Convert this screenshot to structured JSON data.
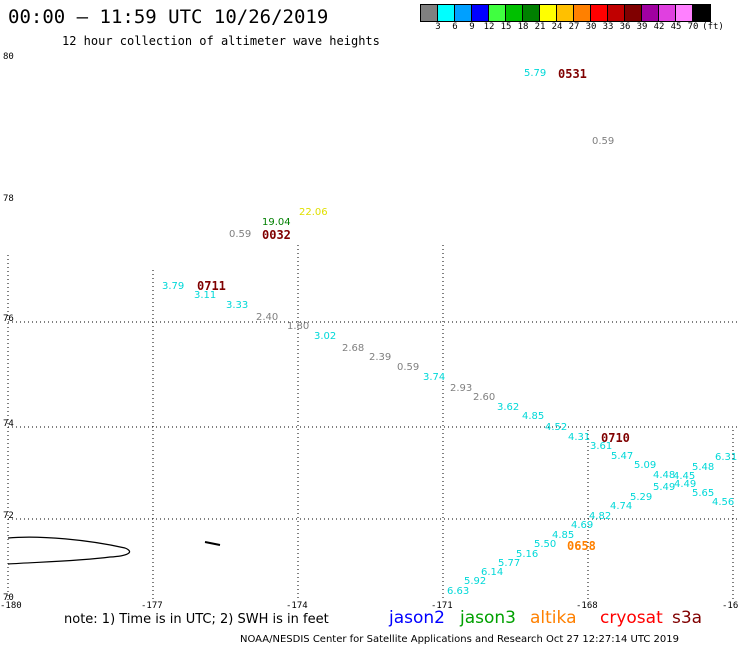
{
  "title": "00:00 – 11:59 UTC 10/26/2019",
  "subtitle": "12 hour collection of altimeter wave heights",
  "legend": {
    "unit": "(ft)",
    "items": [
      {
        "label": "3",
        "color": "#808080"
      },
      {
        "label": "6",
        "color": "#00ffff"
      },
      {
        "label": "9",
        "color": "#00a0ff"
      },
      {
        "label": "12",
        "color": "#0000ff"
      },
      {
        "label": "15",
        "color": "#40ff40"
      },
      {
        "label": "18",
        "color": "#00c000"
      },
      {
        "label": "21",
        "color": "#008000"
      },
      {
        "label": "24",
        "color": "#ffff00"
      },
      {
        "label": "27",
        "color": "#ffc000"
      },
      {
        "label": "30",
        "color": "#ff8000"
      },
      {
        "label": "33",
        "color": "#ff0000"
      },
      {
        "label": "36",
        "color": "#c00000"
      },
      {
        "label": "39",
        "color": "#800000"
      },
      {
        "label": "42",
        "color": "#a000a0"
      },
      {
        "label": "45",
        "color": "#e040e0"
      },
      {
        "label": "70",
        "color": "#ff80ff"
      },
      {
        "label": "",
        "color": "#000000"
      }
    ]
  },
  "axes": {
    "lat_labels": [
      "80",
      "78",
      "76",
      "74",
      "72",
      "70"
    ],
    "lon_labels": [
      "-180",
      "-177",
      "-174",
      "-171",
      "-168",
      "-16"
    ]
  },
  "points": [
    {
      "text": "5.79",
      "color": "#00d8d8"
    },
    {
      "text": "0.59",
      "color": "#808080"
    },
    {
      "text": "19.04",
      "color": "#008000"
    },
    {
      "text": "22.06",
      "color": "#e0e000"
    },
    {
      "text": "0.59",
      "color": "#808080"
    },
    {
      "text": "3.79",
      "color": "#00d8d8"
    },
    {
      "text": "3.11",
      "color": "#00d8d8"
    },
    {
      "text": "3.33",
      "color": "#00d8d8"
    },
    {
      "text": "2.40",
      "color": "#808080"
    },
    {
      "text": "1.80",
      "color": "#808080"
    },
    {
      "text": "3.02",
      "color": "#00d8d8"
    },
    {
      "text": "2.68",
      "color": "#808080"
    },
    {
      "text": "2.39",
      "color": "#808080"
    },
    {
      "text": "0.59",
      "color": "#808080"
    },
    {
      "text": "3.74",
      "color": "#00d8d8"
    },
    {
      "text": "2.93",
      "color": "#808080"
    },
    {
      "text": "2.60",
      "color": "#808080"
    },
    {
      "text": "3.62",
      "color": "#00d8d8"
    },
    {
      "text": "4.85",
      "color": "#00d8d8"
    },
    {
      "text": "4.52",
      "color": "#00d8d8"
    },
    {
      "text": "4.31",
      "color": "#00d8d8"
    },
    {
      "text": "3.61",
      "color": "#00d8d8"
    },
    {
      "text": "5.47",
      "color": "#00d8d8"
    },
    {
      "text": "5.09",
      "color": "#00d8d8"
    },
    {
      "text": "4.48",
      "color": "#00d8d8"
    },
    {
      "text": "4.45",
      "color": "#00d8d8"
    },
    {
      "text": "5.48",
      "color": "#00d8d8"
    },
    {
      "text": "6.31",
      "color": "#00d8d8"
    },
    {
      "text": "5.49",
      "color": "#00d8d8"
    },
    {
      "text": "4.49",
      "color": "#00d8d8"
    },
    {
      "text": "5.29",
      "color": "#00d8d8"
    },
    {
      "text": "5.65",
      "color": "#00d8d8"
    },
    {
      "text": "4.74",
      "color": "#00d8d8"
    },
    {
      "text": "4.56",
      "color": "#00d8d8"
    },
    {
      "text": "4.82",
      "color": "#00d8d8"
    },
    {
      "text": "4.69",
      "color": "#00d8d8"
    },
    {
      "text": "4.85",
      "color": "#00d8d8"
    },
    {
      "text": "5.50",
      "color": "#00d8d8"
    },
    {
      "text": "5.16",
      "color": "#00d8d8"
    },
    {
      "text": "5.77",
      "color": "#00d8d8"
    },
    {
      "text": "6.14",
      "color": "#00d8d8"
    },
    {
      "text": "5.92",
      "color": "#00d8d8"
    },
    {
      "text": "6.63",
      "color": "#00d8d8"
    }
  ],
  "pass_times": [
    {
      "text": "0531",
      "color": "#800000"
    },
    {
      "text": "0032",
      "color": "#800000"
    },
    {
      "text": "0711",
      "color": "#800000"
    },
    {
      "text": "0710",
      "color": "#800000"
    },
    {
      "text": "0658",
      "color": "#ff8000"
    }
  ],
  "note": "note:  1) Time is in UTC;  2) SWH is in feet",
  "satellites": [
    {
      "name": "jason2",
      "color": "#0000ff"
    },
    {
      "name": "jason3",
      "color": "#00a000"
    },
    {
      "name": "altika",
      "color": "#ff8000"
    },
    {
      "name": "cryosat",
      "color": "#ff0000"
    },
    {
      "name": "s3a",
      "color": "#800000"
    }
  ],
  "credit": "NOAA/NESDIS Center for Satellite Applications and Research     Oct 27 12:27:14 UTC 2019"
}
